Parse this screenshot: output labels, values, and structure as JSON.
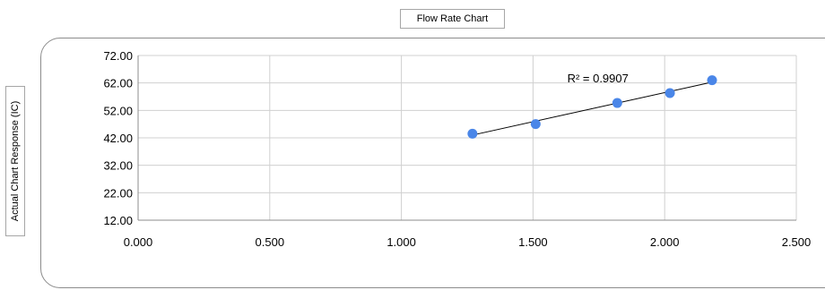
{
  "chart_data": {
    "type": "scatter",
    "title": "Flow Rate Chart",
    "xlabel": "",
    "ylabel": "Actual Chart Response (IC)",
    "xlim": [
      0.0,
      2.5
    ],
    "ylim": [
      12.0,
      72.0
    ],
    "x_ticks": [
      "0.000",
      "0.500",
      "1.000",
      "1.500",
      "2.000",
      "2.500"
    ],
    "y_ticks": [
      "12.00",
      "22.00",
      "32.00",
      "42.00",
      "52.00",
      "62.00",
      "72.00"
    ],
    "grid": true,
    "points": [
      {
        "x": 1.27,
        "y": 43.5
      },
      {
        "x": 1.51,
        "y": 47.0
      },
      {
        "x": 1.82,
        "y": 54.7
      },
      {
        "x": 2.02,
        "y": 58.3
      },
      {
        "x": 2.18,
        "y": 63.0
      }
    ],
    "trendline": {
      "from": {
        "x": 1.27,
        "y": 43.0
      },
      "to": {
        "x": 2.18,
        "y": 62.3
      }
    },
    "annotation": "R² = 0.9907",
    "marker_color": "#4a86e8",
    "line_color": "#000000"
  }
}
